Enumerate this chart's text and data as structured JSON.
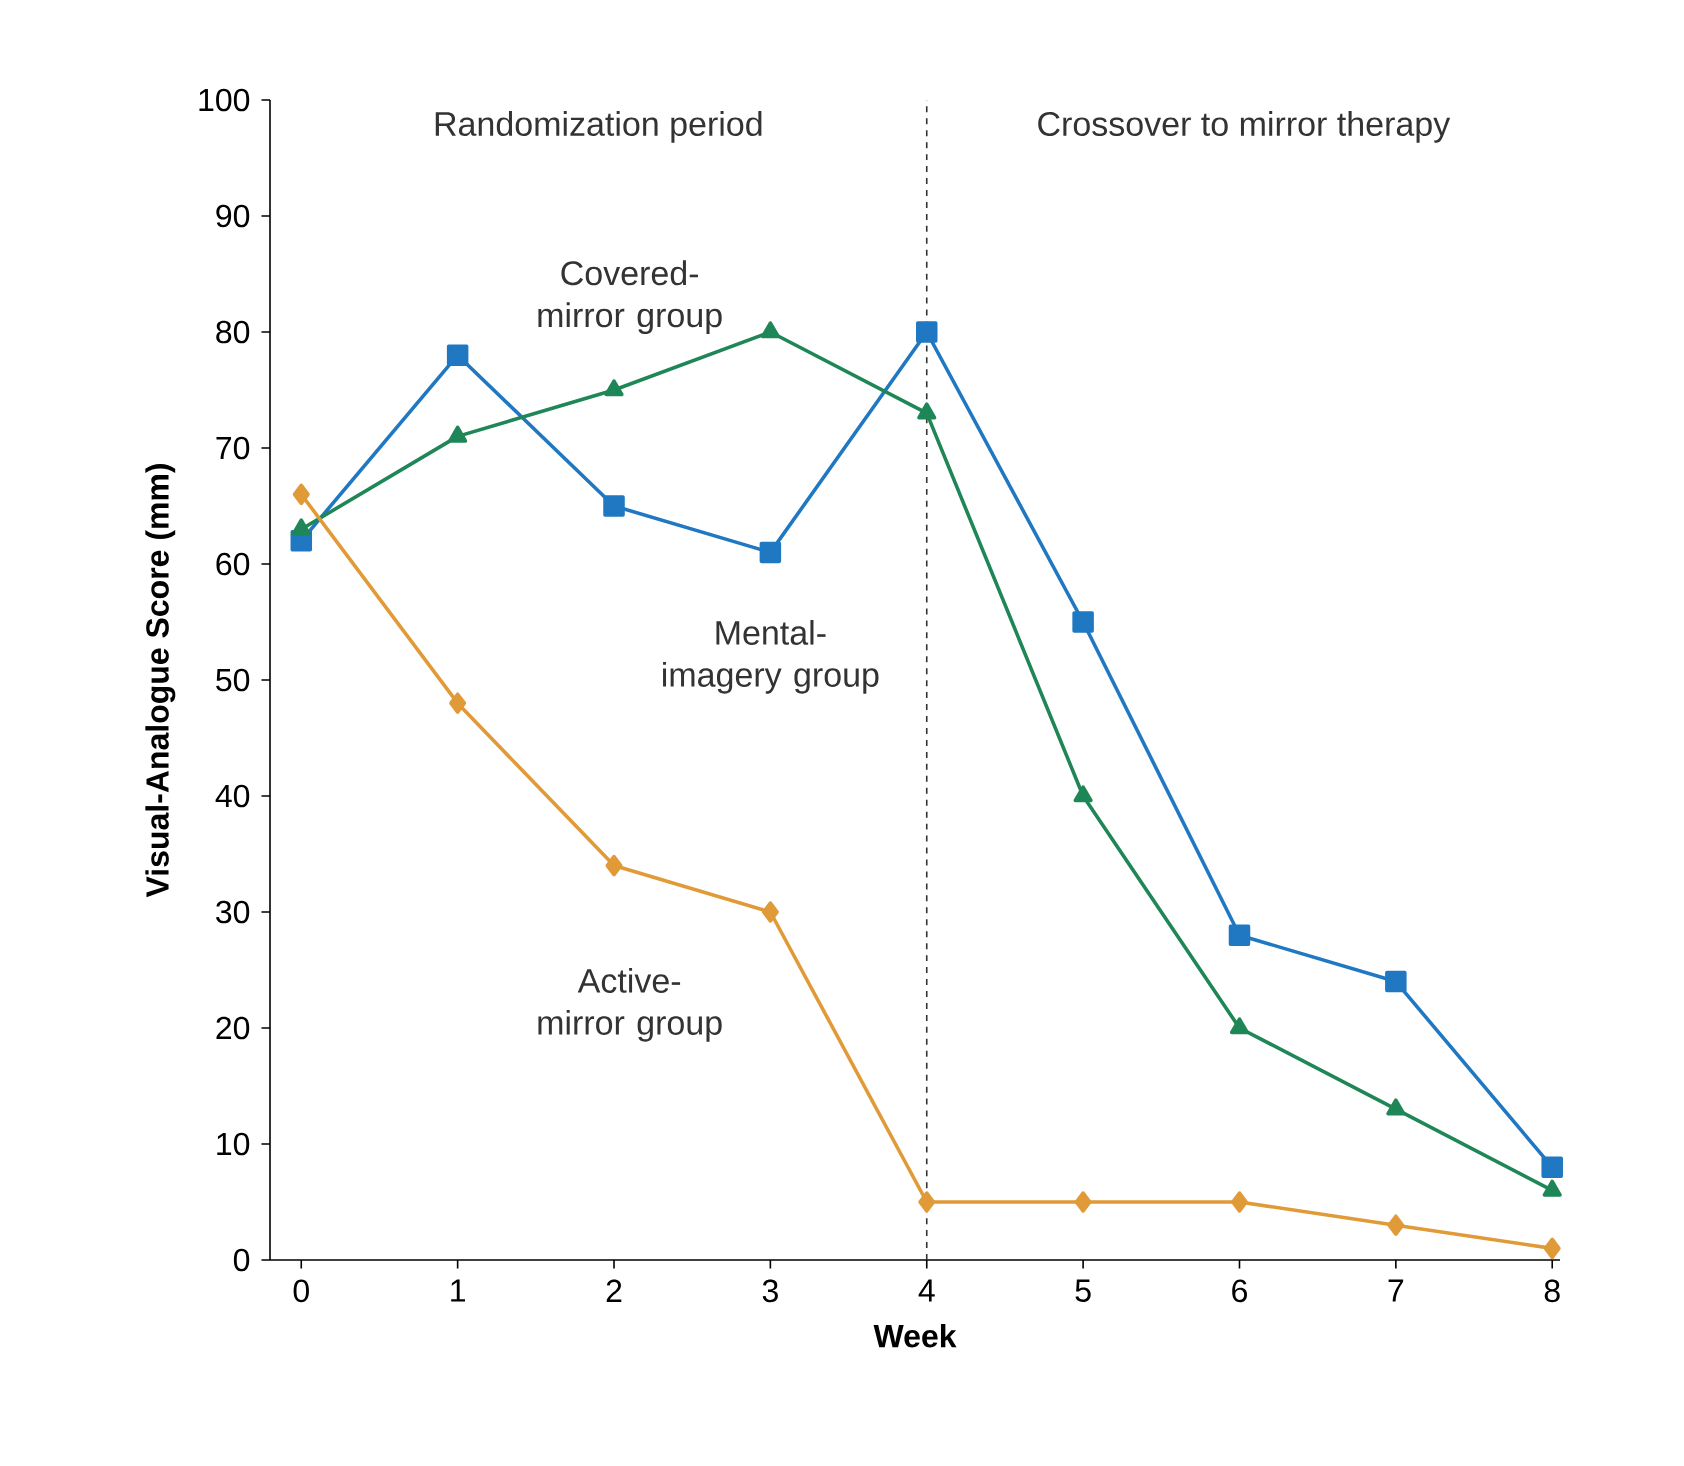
{
  "chart_data": {
    "type": "line",
    "xlabel": "Week",
    "ylabel": "Visual-Analogue Score (mm)",
    "x": [
      0,
      1,
      2,
      3,
      4,
      5,
      6,
      7,
      8
    ],
    "series": [
      {
        "name": "Mental-imagery group",
        "color": "#1f78c1",
        "marker": "square",
        "values": [
          62,
          78,
          65,
          61,
          80,
          55,
          28,
          24,
          8
        ]
      },
      {
        "name": "Covered-mirror group",
        "color": "#1e8657",
        "marker": "triangle",
        "values": [
          63,
          71,
          75,
          80,
          73,
          40,
          20,
          13,
          6
        ]
      },
      {
        "name": "Active-mirror group",
        "color": "#e09a38",
        "marker": "diamond",
        "values": [
          66,
          48,
          34,
          30,
          5,
          5,
          5,
          3,
          1
        ]
      }
    ],
    "xlim": [
      -0.2,
      8.05
    ],
    "ylim": [
      0,
      100
    ],
    "xticks": [
      0,
      1,
      2,
      3,
      4,
      5,
      6,
      7,
      8
    ],
    "yticks": [
      0,
      10,
      20,
      30,
      40,
      50,
      60,
      70,
      80,
      90,
      100
    ],
    "ref_lines": [
      {
        "axis": "x",
        "value": 4,
        "color": "#333333",
        "line_style": "dashed"
      }
    ],
    "annotations": [
      "Randomization period",
      "Crossover to mirror therapy"
    ],
    "grid": false,
    "line_style": "solid"
  }
}
